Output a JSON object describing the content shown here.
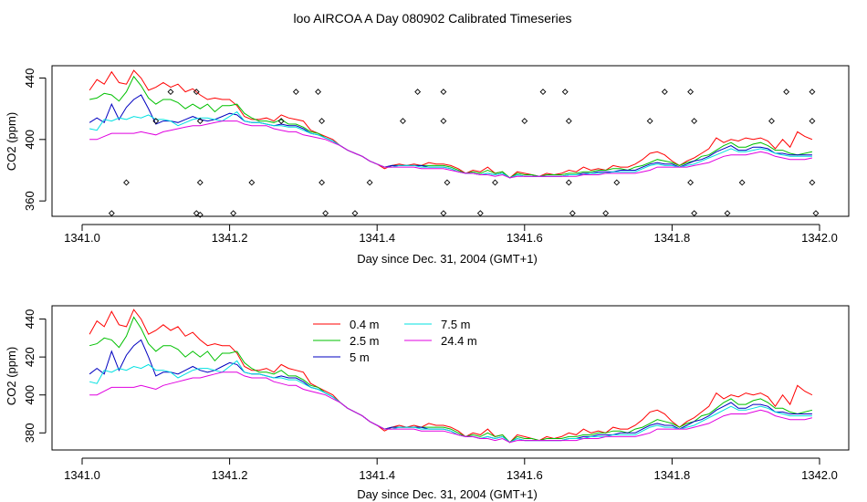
{
  "chart_data": [
    {
      "type": "line",
      "title": "loo AIRCOA A  Day 080902  Calibrated Timeseries",
      "xlabel": "Day since Dec. 31, 2004 (GMT+1)",
      "ylabel": "CO2 (ppm)",
      "xlim": [
        1341.0,
        1342.0
      ],
      "ylim": [
        350,
        448
      ],
      "x_ticks": [
        "1341.0",
        "1341.2",
        "1341.4",
        "1341.6",
        "1341.8",
        "1342.0"
      ],
      "y_ticks": [
        "360",
        "400",
        "440"
      ],
      "legend": "none",
      "x": [
        1341.01,
        1341.02,
        1341.03,
        1341.04,
        1341.05,
        1341.06,
        1341.07,
        1341.08,
        1341.09,
        1341.1,
        1341.11,
        1341.12,
        1341.13,
        1341.14,
        1341.15,
        1341.16,
        1341.17,
        1341.18,
        1341.19,
        1341.2,
        1341.21,
        1341.22,
        1341.23,
        1341.24,
        1341.25,
        1341.26,
        1341.27,
        1341.28,
        1341.29,
        1341.3,
        1341.31,
        1341.32,
        1341.33,
        1341.34,
        1341.35,
        1341.36,
        1341.37,
        1341.38,
        1341.39,
        1341.4,
        1341.41,
        1341.42,
        1341.43,
        1341.44,
        1341.45,
        1341.46,
        1341.47,
        1341.48,
        1341.49,
        1341.5,
        1341.51,
        1341.52,
        1341.53,
        1341.54,
        1341.55,
        1341.56,
        1341.57,
        1341.58,
        1341.59,
        1341.6,
        1341.61,
        1341.62,
        1341.63,
        1341.64,
        1341.65,
        1341.66,
        1341.67,
        1341.68,
        1341.69,
        1341.7,
        1341.71,
        1341.72,
        1341.73,
        1341.74,
        1341.75,
        1341.76,
        1341.77,
        1341.78,
        1341.79,
        1341.8,
        1341.81,
        1341.82,
        1341.83,
        1341.84,
        1341.85,
        1341.86,
        1341.87,
        1341.88,
        1341.89,
        1341.9,
        1341.91,
        1341.92,
        1341.93,
        1341.94,
        1341.95,
        1341.96,
        1341.97,
        1341.98,
        1341.99
      ],
      "series": [
        {
          "name": "0.4 m",
          "color": "#ff0000",
          "values": [
            432,
            439,
            436,
            444,
            437,
            436,
            445,
            440,
            432,
            434,
            437,
            434,
            436,
            431,
            433,
            429,
            426,
            427,
            426,
            426,
            422,
            415,
            413,
            413,
            414,
            412,
            416,
            414,
            413,
            412,
            406,
            404,
            402,
            400,
            396,
            393,
            391,
            389,
            386,
            384,
            381,
            383,
            384,
            383,
            384,
            383,
            385,
            384,
            384,
            383,
            381,
            378,
            380,
            379,
            382,
            378,
            379,
            375,
            379,
            378,
            377,
            376,
            378,
            377,
            378,
            380,
            379,
            382,
            380,
            381,
            380,
            383,
            382,
            382,
            384,
            387,
            391,
            392,
            390,
            386,
            383,
            386,
            388,
            391,
            394,
            401,
            398,
            400,
            399,
            401,
            400,
            401,
            399,
            394,
            400,
            395,
            405,
            402,
            400
          ]
        },
        {
          "name": "2.5 m",
          "color": "#00c000",
          "values": [
            426,
            427,
            430,
            429,
            425,
            431,
            441,
            435,
            427,
            423,
            426,
            426,
            424,
            420,
            423,
            420,
            423,
            418,
            422,
            422,
            423,
            417,
            414,
            412,
            412,
            411,
            413,
            410,
            410,
            408,
            405,
            404,
            401,
            399,
            396,
            393,
            391,
            389,
            386,
            384,
            382,
            383,
            383,
            383,
            383,
            383,
            383,
            383,
            383,
            382,
            380,
            378,
            379,
            378,
            380,
            378,
            379,
            375,
            378,
            377,
            377,
            376,
            377,
            377,
            377,
            378,
            378,
            379,
            379,
            380,
            380,
            381,
            381,
            380,
            382,
            383,
            385,
            387,
            386,
            385,
            383,
            385,
            386,
            389,
            390,
            393,
            396,
            398,
            395,
            395,
            397,
            398,
            396,
            393,
            393,
            391,
            390,
            391,
            392
          ]
        },
        {
          "name": "5 m",
          "color": "#0000c0",
          "values": [
            411,
            414,
            411,
            423,
            413,
            421,
            426,
            429,
            420,
            410,
            412,
            412,
            411,
            413,
            415,
            413,
            412,
            413,
            415,
            417,
            416,
            412,
            411,
            411,
            410,
            409,
            410,
            409,
            409,
            407,
            404,
            403,
            401,
            399,
            396,
            393,
            391,
            389,
            386,
            384,
            382,
            383,
            383,
            383,
            383,
            383,
            382,
            382,
            382,
            381,
            379,
            378,
            378,
            377,
            378,
            377,
            378,
            375,
            377,
            376,
            376,
            376,
            376,
            376,
            376,
            377,
            377,
            378,
            378,
            379,
            379,
            379,
            380,
            380,
            380,
            382,
            384,
            385,
            384,
            384,
            382,
            384,
            386,
            387,
            389,
            392,
            394,
            396,
            393,
            393,
            395,
            395,
            394,
            391,
            391,
            390,
            390,
            390,
            390
          ]
        },
        {
          "name": "7.5 m",
          "color": "#00e0e0",
          "values": [
            407,
            406,
            413,
            412,
            414,
            413,
            415,
            414,
            416,
            413,
            413,
            412,
            409,
            411,
            413,
            414,
            414,
            413,
            412,
            415,
            418,
            412,
            411,
            411,
            410,
            409,
            409,
            408,
            408,
            406,
            404,
            403,
            401,
            399,
            396,
            393,
            391,
            389,
            386,
            384,
            382,
            382,
            383,
            383,
            383,
            382,
            382,
            382,
            382,
            381,
            379,
            378,
            378,
            377,
            378,
            377,
            378,
            375,
            377,
            376,
            376,
            376,
            376,
            376,
            376,
            377,
            377,
            377,
            378,
            378,
            378,
            379,
            379,
            379,
            379,
            381,
            383,
            384,
            383,
            383,
            382,
            383,
            384,
            386,
            388,
            390,
            392,
            394,
            392,
            392,
            393,
            394,
            393,
            391,
            390,
            389,
            389,
            389,
            389
          ]
        },
        {
          "name": "24.4 m",
          "color": "#e000e0",
          "values": [
            400,
            400,
            402,
            404,
            404,
            404,
            404,
            405,
            404,
            403,
            405,
            406,
            407,
            408,
            409,
            409,
            410,
            411,
            412,
            412,
            412,
            410,
            409,
            409,
            409,
            407,
            406,
            405,
            405,
            403,
            402,
            401,
            400,
            398,
            396,
            393,
            391,
            389,
            386,
            384,
            382,
            382,
            382,
            382,
            382,
            381,
            381,
            381,
            381,
            380,
            379,
            378,
            378,
            377,
            377,
            376,
            377,
            375,
            376,
            376,
            376,
            376,
            376,
            376,
            376,
            376,
            376,
            377,
            377,
            377,
            378,
            378,
            378,
            378,
            378,
            379,
            380,
            382,
            382,
            382,
            382,
            382,
            383,
            384,
            385,
            387,
            389,
            390,
            390,
            390,
            391,
            392,
            391,
            389,
            388,
            387,
            387,
            387,
            388
          ]
        }
      ],
      "points": {
        "marker": "open-diamond",
        "x": [
          1341.04,
          1341.06,
          1341.1,
          1341.12,
          1341.155,
          1341.16,
          1341.16,
          1341.155,
          1341.16,
          1341.205,
          1341.23,
          1341.27,
          1341.29,
          1341.32,
          1341.325,
          1341.325,
          1341.33,
          1341.37,
          1341.39,
          1341.435,
          1341.455,
          1341.49,
          1341.49,
          1341.495,
          1341.49,
          1341.54,
          1341.56,
          1341.6,
          1341.625,
          1341.655,
          1341.66,
          1341.66,
          1341.665,
          1341.71,
          1341.725,
          1341.77,
          1341.79,
          1341.825,
          1341.83,
          1341.825,
          1341.83,
          1341.875,
          1341.895,
          1341.935,
          1341.955,
          1341.99,
          1341.99,
          1341.99,
          1341.995
        ],
        "y": [
          352,
          372,
          412,
          431,
          352,
          372,
          412,
          431,
          351,
          352,
          372,
          412,
          431,
          431,
          412,
          372,
          352,
          352,
          372,
          412,
          431,
          431,
          412,
          372,
          352,
          352,
          372,
          412,
          431,
          431,
          412,
          372,
          352,
          352,
          372,
          412,
          431,
          431,
          412,
          372,
          352,
          352,
          372,
          412,
          431,
          431,
          412,
          372,
          352
        ]
      }
    },
    {
      "type": "line",
      "title": "",
      "xlabel": "Day since Dec. 31, 2004 (GMT+1)",
      "ylabel": "CO2 (ppm)",
      "xlim": [
        1341.0,
        1342.0
      ],
      "ylim": [
        371,
        447
      ],
      "x_ticks": [
        "1341.0",
        "1341.2",
        "1341.4",
        "1341.6",
        "1341.8",
        "1342.0"
      ],
      "y_ticks": [
        "380",
        "400",
        "420",
        "440"
      ],
      "legend": "top-left",
      "legend_entries": [
        "0.4 m",
        "2.5 m",
        "5 m",
        "7.5 m",
        "24.4 m"
      ]
    }
  ]
}
